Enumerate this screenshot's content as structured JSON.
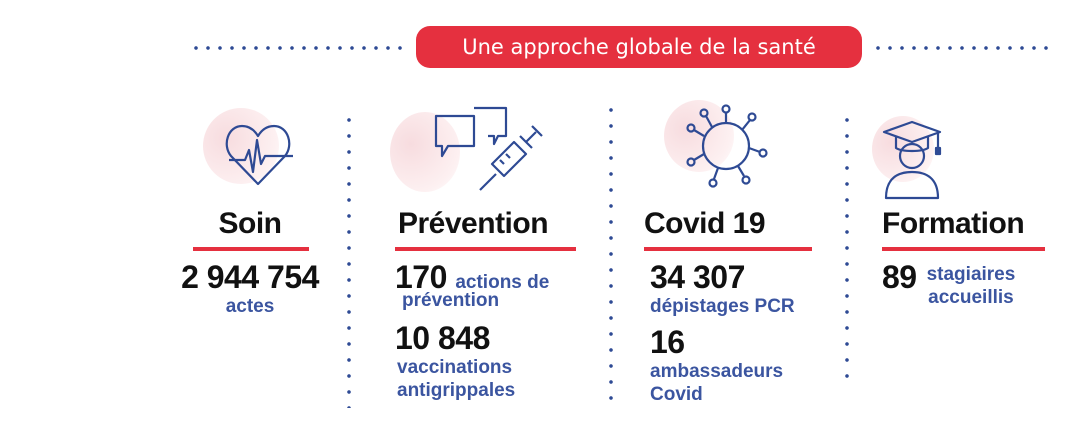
{
  "title": "Une approche globale de la santé",
  "colors": {
    "accent": "#e5303f",
    "navy": "#2e4a94",
    "text_blue": "#3b55a0"
  },
  "sections": [
    {
      "icon": "heart-pulse-icon",
      "heading": "Soin",
      "stats": [
        {
          "value": "2 944 754",
          "label": "actes"
        }
      ]
    },
    {
      "icon": "chat-syringe-icon",
      "heading": "Prévention",
      "stats": [
        {
          "value": "170",
          "label": "actions de prévention",
          "label_line1": "actions de",
          "label_line2": "prévention"
        },
        {
          "value": "10 848",
          "label_line1": "vaccinations",
          "label_line2": "antigrippales"
        }
      ]
    },
    {
      "icon": "virus-icon",
      "heading": "Covid 19",
      "stats": [
        {
          "value": "34 307",
          "label": "dépistages PCR"
        },
        {
          "value": "16",
          "label_line1": "ambassadeurs",
          "label_line2": "Covid"
        }
      ]
    },
    {
      "icon": "graduate-icon",
      "heading": "Formation",
      "stats": [
        {
          "value": "89",
          "label_line1": "stagiaires",
          "label_line2": "accueillis"
        }
      ]
    }
  ]
}
